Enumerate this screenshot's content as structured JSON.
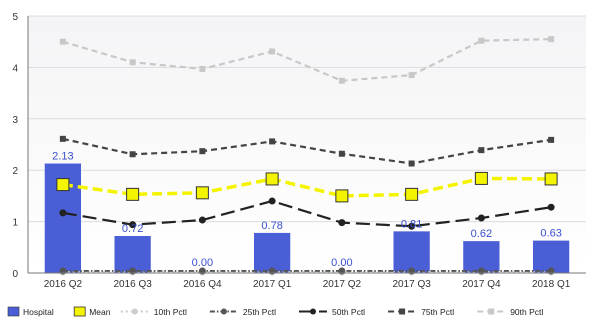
{
  "chart_data": {
    "type": "bar",
    "categories": [
      "2016 Q2",
      "2016 Q3",
      "2016 Q4",
      "2017 Q1",
      "2017 Q2",
      "2017 Q3",
      "2017 Q4",
      "2018 Q1"
    ],
    "ylim": [
      0,
      5
    ],
    "yticks": [
      "0",
      "1",
      "2",
      "3",
      "4",
      "5"
    ],
    "grid": true,
    "legend_position": "bottom",
    "bar_series": {
      "name": "Hospital",
      "color": "#4a5fd6",
      "values": [
        2.13,
        0.72,
        0.0,
        0.78,
        0.0,
        0.81,
        0.62,
        0.63
      ],
      "labels": [
        "2.13",
        "0.72",
        "0.00",
        "0.78",
        "0.00",
        "0.81",
        "0.62",
        "0.63"
      ]
    },
    "line_series": [
      {
        "name": "Mean",
        "color": "#f4f400",
        "style": "dashed-thick",
        "marker": "square",
        "values": [
          1.72,
          1.53,
          1.56,
          1.83,
          1.5,
          1.53,
          1.84,
          1.83
        ]
      },
      {
        "name": "10th Pctl",
        "color": "#cccccc",
        "style": "dotted",
        "marker": "dot",
        "values": [
          0.02,
          0.02,
          0.02,
          0.02,
          0.02,
          0.02,
          0.02,
          0.02
        ]
      },
      {
        "name": "25th Pctl",
        "color": "#555555",
        "style": "dashdot",
        "marker": "dot",
        "values": [
          0.04,
          0.04,
          0.04,
          0.04,
          0.04,
          0.04,
          0.04,
          0.04
        ]
      },
      {
        "name": "50th Pctl",
        "color": "#222222",
        "style": "longdash",
        "marker": "dot",
        "values": [
          1.17,
          0.94,
          1.03,
          1.4,
          0.98,
          0.91,
          1.07,
          1.28
        ]
      },
      {
        "name": "75th Pctl",
        "color": "#444444",
        "style": "dashed",
        "marker": "small-square",
        "values": [
          2.61,
          2.31,
          2.37,
          2.56,
          2.32,
          2.13,
          2.39,
          2.59
        ]
      },
      {
        "name": "90th Pctl",
        "color": "#c8c8c8",
        "style": "dashed",
        "marker": "small-square",
        "values": [
          4.5,
          4.1,
          3.97,
          4.31,
          3.74,
          3.85,
          4.52,
          4.55
        ]
      }
    ]
  }
}
